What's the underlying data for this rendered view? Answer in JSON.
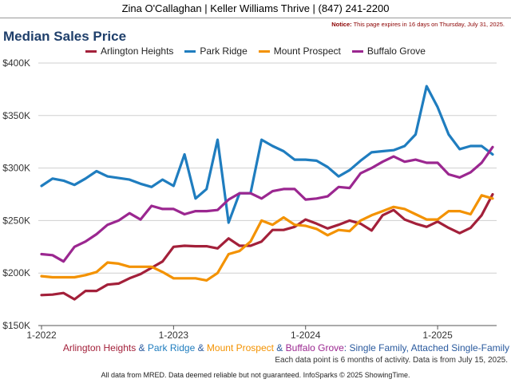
{
  "header": {
    "agent_line": "Zina O'Callaghan | Keller Williams Thrive | (847) 241-2200",
    "notice_label": "Notice:",
    "notice_text": " This page expires in 16 days on Thursday, July 31, 2025."
  },
  "footer": {
    "caption_parts": [
      {
        "text": "Arlington Heights",
        "color": "#a3203a"
      },
      {
        "text": " & ",
        "color": "#2a5a9e"
      },
      {
        "text": "Park Ridge",
        "color": "#1f7dbf"
      },
      {
        "text": " & ",
        "color": "#2a5a9e"
      },
      {
        "text": "Mount Prospect",
        "color": "#f39200"
      },
      {
        "text": " & ",
        "color": "#2a5a9e"
      },
      {
        "text": "Buffalo Grove",
        "color": "#9b2790"
      },
      {
        "text": ": Single Family, Attached Single-Family",
        "color": "#2a5a9e"
      }
    ],
    "data_note": "Each data point is 6 months of activity. Data is from July 15, 2025.",
    "disclaimer": "All data from MRED. Data deemed reliable but not guaranteed. InfoSparks © 2025 ShowingTime."
  },
  "chart_data": {
    "type": "line",
    "title": "Median Sales Price",
    "xlabel": "",
    "ylabel": "",
    "ylim": [
      150000,
      400000
    ],
    "y_ticks": [
      150000,
      200000,
      250000,
      300000,
      350000,
      400000
    ],
    "y_tick_labels": [
      "$150K",
      "$200K",
      "$250K",
      "$300K",
      "$350K",
      "$400K"
    ],
    "x_tick_labels": [
      "1-2022",
      "1-2023",
      "1-2024",
      "1-2025"
    ],
    "grid": true,
    "legend": "top",
    "x": [
      "2022-01",
      "2022-02",
      "2022-03",
      "2022-04",
      "2022-05",
      "2022-06",
      "2022-07",
      "2022-08",
      "2022-09",
      "2022-10",
      "2022-11",
      "2022-12",
      "2023-01",
      "2023-02",
      "2023-03",
      "2023-04",
      "2023-05",
      "2023-06",
      "2023-07",
      "2023-08",
      "2023-09",
      "2023-10",
      "2023-11",
      "2023-12",
      "2024-01",
      "2024-02",
      "2024-03",
      "2024-04",
      "2024-05",
      "2024-06",
      "2024-07",
      "2024-08",
      "2024-09",
      "2024-10",
      "2024-11",
      "2024-12",
      "2025-01",
      "2025-02",
      "2025-03",
      "2025-04",
      "2025-05",
      "2025-06"
    ],
    "series": [
      {
        "name": "Arlington Heights",
        "color": "#a3203a",
        "values": [
          179000,
          179500,
          181000,
          175000,
          183000,
          183000,
          189000,
          190000,
          195000,
          199000,
          205000,
          211000,
          225000,
          226000,
          225500,
          225500,
          223500,
          233000,
          226000,
          226000,
          230000,
          241000,
          241000,
          244000,
          251000,
          247000,
          242500,
          246000,
          250000,
          247000,
          240500,
          255000,
          260000,
          251000,
          247000,
          244000,
          249000,
          243000,
          238000,
          243000,
          255000,
          275000
        ]
      },
      {
        "name": "Park Ridge",
        "color": "#1f7dbf",
        "values": [
          283000,
          290000,
          288000,
          284000,
          290000,
          297000,
          292000,
          290500,
          289000,
          285000,
          282000,
          289000,
          283000,
          313000,
          271000,
          280000,
          327000,
          248000,
          276000,
          276000,
          327000,
          321000,
          316000,
          308000,
          308000,
          307000,
          301000,
          292000,
          298000,
          307000,
          315000,
          316000,
          317000,
          321000,
          332000,
          378000,
          358000,
          332000,
          318000,
          321000,
          321000,
          313000
        ]
      },
      {
        "name": "Mount Prospect",
        "color": "#f39200",
        "values": [
          197000,
          196000,
          196000,
          196000,
          198000,
          201000,
          210000,
          209000,
          206000,
          206000,
          206000,
          201000,
          195000,
          195000,
          195000,
          193000,
          200000,
          218000,
          221000,
          230000,
          250000,
          246000,
          253000,
          246000,
          245000,
          242000,
          236000,
          241000,
          240000,
          250000,
          255000,
          259000,
          263000,
          261000,
          256000,
          251000,
          251000,
          259000,
          259000,
          256000,
          274000,
          271000
        ]
      },
      {
        "name": "Buffalo Grove",
        "color": "#9b2790",
        "values": [
          218000,
          217000,
          211000,
          225000,
          230000,
          237000,
          246000,
          250000,
          257000,
          251000,
          264000,
          261000,
          261000,
          256000,
          259000,
          259000,
          260000,
          270000,
          276000,
          276000,
          271000,
          278000,
          280000,
          280000,
          270000,
          271000,
          273000,
          282000,
          281000,
          295000,
          300000,
          306000,
          311000,
          306000,
          308000,
          305000,
          305000,
          294000,
          291000,
          296000,
          305000,
          320000
        ]
      }
    ]
  }
}
